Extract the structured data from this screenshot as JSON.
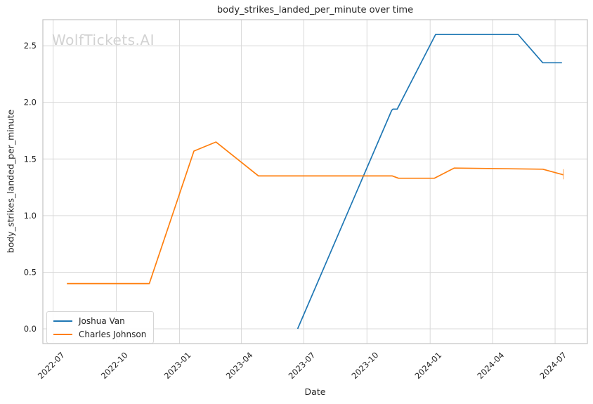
{
  "watermark": {
    "text": "WolfTickets.AI"
  },
  "chart_data": {
    "type": "line",
    "title": "body_strikes_landed_per_minute over time",
    "xlabel": "Date",
    "ylabel": "body_strikes_landed_per_minute",
    "grid": true,
    "legend_position": "lower left",
    "background_color": "#ffffff",
    "grid_color": "#d9d9d9",
    "spine_color": "#c3c3c3",
    "text_color": "#262626",
    "xlim": [
      "2022-06-16",
      "2024-08-17"
    ],
    "ylim": [
      -0.13,
      2.73
    ],
    "yticks": [
      {
        "value": 0.0,
        "label": "0.0"
      },
      {
        "value": 0.5,
        "label": "0.5"
      },
      {
        "value": 1.0,
        "label": "1.0"
      },
      {
        "value": 1.5,
        "label": "1.5"
      },
      {
        "value": 2.0,
        "label": "2.0"
      },
      {
        "value": 2.5,
        "label": "2.5"
      }
    ],
    "xticks": [
      {
        "date": "2022-07-01",
        "label": "2022-07"
      },
      {
        "date": "2022-10-01",
        "label": "2022-10"
      },
      {
        "date": "2023-01-01",
        "label": "2023-01"
      },
      {
        "date": "2023-04-01",
        "label": "2023-04"
      },
      {
        "date": "2023-07-01",
        "label": "2023-07"
      },
      {
        "date": "2023-10-01",
        "label": "2023-10"
      },
      {
        "date": "2024-01-01",
        "label": "2024-01"
      },
      {
        "date": "2024-04-01",
        "label": "2024-04"
      },
      {
        "date": "2024-07-01",
        "label": "2024-07"
      }
    ],
    "series": [
      {
        "name": "Joshua Van",
        "color": "#1f77b4",
        "points": [
          [
            "2023-06-22",
            0.0
          ],
          [
            "2023-11-06",
            1.93
          ],
          [
            "2023-11-08",
            1.94
          ],
          [
            "2023-11-14",
            1.94
          ],
          [
            "2024-01-09",
            2.6
          ],
          [
            "2024-05-08",
            2.6
          ],
          [
            "2024-06-13",
            2.35
          ],
          [
            "2024-07-11",
            2.35
          ]
        ]
      },
      {
        "name": "Charles Johnson",
        "color": "#ff7f0e",
        "points": [
          [
            "2022-07-21",
            0.4
          ],
          [
            "2022-11-18",
            0.4
          ],
          [
            "2023-01-22",
            1.57
          ],
          [
            "2023-02-23",
            1.65
          ],
          [
            "2023-04-26",
            1.35
          ],
          [
            "2023-11-07",
            1.35
          ],
          [
            "2023-11-16",
            1.33
          ],
          [
            "2024-01-07",
            1.33
          ],
          [
            "2024-02-05",
            1.42
          ],
          [
            "2024-06-13",
            1.41
          ],
          [
            "2024-07-13",
            1.36
          ]
        ],
        "error_bar": {
          "date": "2024-07-13",
          "high": 1.41,
          "low": 1.32
        }
      }
    ]
  }
}
